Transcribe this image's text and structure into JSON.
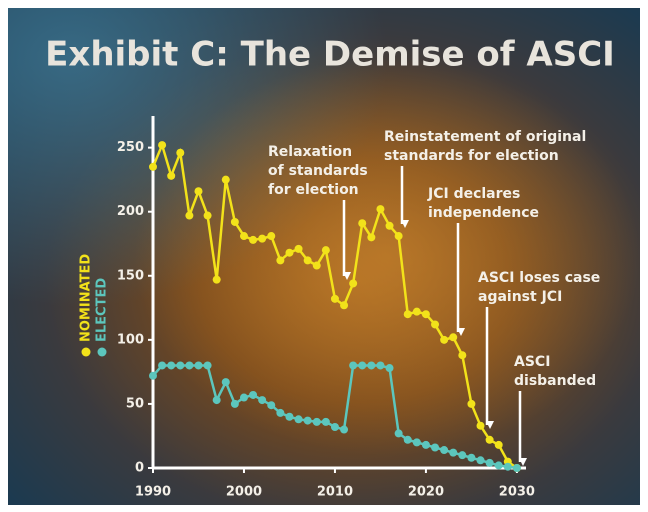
{
  "chart_data": {
    "type": "line",
    "title": "Exhibit C: The Demise of ASCI",
    "x": [
      1990,
      1991,
      1992,
      1993,
      1994,
      1995,
      1996,
      1997,
      1998,
      1999,
      2000,
      2001,
      2002,
      2003,
      2004,
      2005,
      2006,
      2007,
      2008,
      2009,
      2010,
      2011,
      2012,
      2013,
      2014,
      2015,
      2016,
      2017,
      2018,
      2019,
      2020,
      2021,
      2022,
      2023,
      2024,
      2025,
      2026,
      2027,
      2028,
      2029,
      2030
    ],
    "series": [
      {
        "name": "NOMINATED",
        "color": "#f2e21a",
        "values": [
          235,
          252,
          228,
          246,
          197,
          216,
          197,
          147,
          225,
          192,
          181,
          178,
          179,
          181,
          162,
          168,
          171,
          162,
          158,
          170,
          132,
          127,
          144,
          191,
          180,
          202,
          189,
          181,
          120,
          122,
          120,
          112,
          100,
          102,
          88,
          50,
          33,
          22,
          18,
          5,
          0
        ]
      },
      {
        "name": "ELECTED",
        "color": "#5cc6bd",
        "values": [
          72,
          80,
          80,
          80,
          80,
          80,
          80,
          53,
          67,
          50,
          55,
          57,
          53,
          49,
          43,
          40,
          38,
          37,
          36,
          36,
          32,
          30,
          80,
          80,
          80,
          80,
          78,
          27,
          22,
          20,
          18,
          16,
          14,
          12,
          10,
          8,
          6,
          4,
          2,
          1,
          0
        ]
      }
    ],
    "xlim": [
      1990,
      2031
    ],
    "xticks": [
      1990,
      2000,
      2010,
      2020,
      2030
    ],
    "ylim": [
      0,
      270
    ],
    "yticks": [
      0,
      50,
      100,
      150,
      200,
      250
    ],
    "annotations": [
      [
        "Relaxation",
        "of standards",
        "for election"
      ],
      [
        "Reinstatement of original",
        "standards for election"
      ],
      [
        "JCI declares",
        "independence"
      ],
      [
        "ASCI loses case",
        "against JCI"
      ],
      [
        "ASCI",
        "disbanded"
      ]
    ]
  }
}
